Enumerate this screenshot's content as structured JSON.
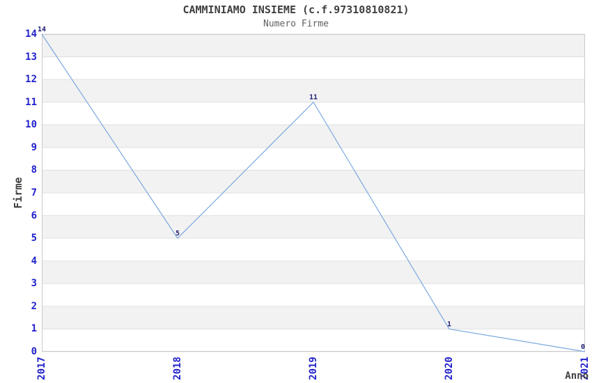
{
  "chart_data": {
    "type": "line",
    "title": "CAMMINIAMO INSIEME (c.f.97310810821)",
    "subtitle": "Numero Firme",
    "xlabel": "Anno",
    "ylabel": "Firme",
    "categories": [
      "2017",
      "2018",
      "2019",
      "2020",
      "2021"
    ],
    "series": [
      {
        "name": "Numero Firme",
        "values": [
          14,
          5,
          11,
          1,
          0
        ]
      }
    ],
    "yticks": [
      0,
      1,
      2,
      3,
      4,
      5,
      6,
      7,
      8,
      9,
      10,
      11,
      12,
      13,
      14
    ],
    "ylim": [
      0,
      14
    ],
    "grid": "horizontal-lines-with-alternating-bands",
    "legend_position": "none",
    "colors": {
      "line": "#7aa8e0",
      "point_label": "#1c1c70",
      "tick_label": "#2121cc",
      "axis_title": "#404040",
      "title": "#404040",
      "subtitle": "#606060",
      "band": "#f2f2f2",
      "gridline": "#e0e0e0",
      "border": "#c9c9c9",
      "background": "#ffffff"
    }
  }
}
